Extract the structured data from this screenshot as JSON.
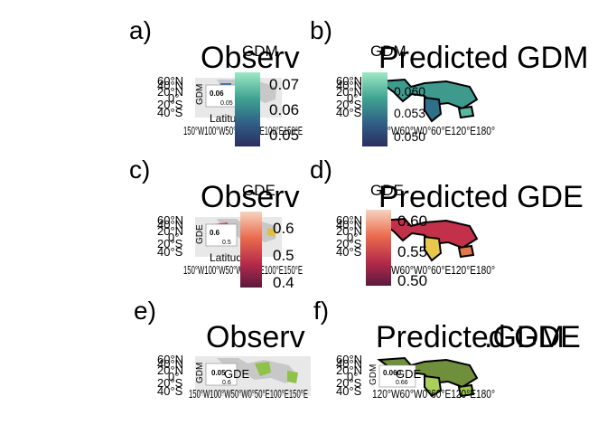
{
  "figure": {
    "panels": [
      {
        "id": "a",
        "letter": "a)",
        "title": "Observ",
        "legend_title": "GDM",
        "ticks": [
          "0.07",
          "0.06",
          "0.05"
        ],
        "inset_labels": [
          "0.06",
          "0.05"
        ],
        "inset_xlabel": "Latitude",
        "inset_ylabel": "GDM",
        "lat_labels": [
          "60°N",
          "40°N",
          "20°N",
          "0°",
          "20°S",
          "40°S"
        ],
        "lon_labels": "150°W100°W50°W0°50°E100°E150°E"
      },
      {
        "id": "b",
        "letter": "b)",
        "title": "Predicted GDM",
        "legend_title": "GDM",
        "ticks": [
          "0.060",
          "0.053",
          "0.050"
        ],
        "inset_labels": [],
        "inset_xlabel": "",
        "inset_ylabel": "",
        "lat_labels": [
          "60°N",
          "40°N",
          "20°N",
          "0°",
          "20°S",
          "40°S"
        ],
        "lon_labels": "120°W60°W0°60°E120°E180°"
      },
      {
        "id": "c",
        "letter": "c)",
        "title": "Observ",
        "legend_title": "GDE",
        "ticks": [
          "0.6",
          "0.5",
          "0.4"
        ],
        "inset_labels": [
          "0.6",
          "0.5"
        ],
        "inset_xlabel": "Latitude",
        "inset_ylabel": "GDE",
        "lat_labels": [
          "60°N",
          "40°N",
          "20°N",
          "0°",
          "20°S",
          "40°S"
        ],
        "lon_labels": "150°W100°W50°W0°50°E100°E150°E"
      },
      {
        "id": "d",
        "letter": "d)",
        "title": "Predicted GDE",
        "legend_title": "GDE",
        "ticks": [
          "0.60",
          "0.55",
          "0.50"
        ],
        "inset_labels": [],
        "inset_xlabel": "",
        "inset_ylabel": "",
        "lat_labels": [
          "60°N",
          "40°N",
          "20°N",
          "0°",
          "20°S",
          "40°S"
        ],
        "lon_labels": "120°W60°W0°60°E120°E180°"
      },
      {
        "id": "e",
        "letter": "e)",
        "title": "Observ",
        "legend_title": "",
        "ticks": [],
        "inset_labels": [
          "0.05",
          "0.6"
        ],
        "inset_xlabel": "GDE",
        "inset_ylabel": "GDM",
        "lat_labels": [
          "60°N",
          "40°N",
          "20°N",
          "0°",
          "20°S",
          "40°S"
        ],
        "lon_labels": "150°W100°W50°W0°50°E100°E150°E"
      },
      {
        "id": "f",
        "letter": "f)",
        "title": "Predicted GDE",
        "title_overlap": ".GDM",
        "legend_title": "",
        "ticks": [],
        "inset_labels": [
          "0.060",
          "0.66"
        ],
        "inset_xlabel": "GDE",
        "inset_ylabel": "GDM",
        "lat_labels": [
          "60°N",
          "40°N",
          "20°N",
          "0°",
          "20°S",
          "40°S"
        ],
        "lon_labels": "120°W60°W0°60°E120°E180°"
      }
    ]
  },
  "colors": {
    "gdm_high": "#7fd6b0",
    "gdm_low": "#2b2f5e",
    "gde_high": "#f6c7b0",
    "gde_low": "#5a1a3e",
    "land": "#c8c8c8",
    "veg": "#8fc24a"
  },
  "chart_data": [
    {
      "type": "heatmap",
      "title": "Observ",
      "legend": "GDM",
      "scale": [
        "0.07",
        "0.06",
        "0.05"
      ]
    },
    {
      "type": "heatmap",
      "title": "Predicted GDM",
      "legend": "GDM",
      "scale": [
        "0.060",
        "0.053",
        "0.050"
      ]
    },
    {
      "type": "heatmap",
      "title": "Observ",
      "legend": "GDE",
      "scale": [
        "0.6",
        "0.5",
        "0.4"
      ]
    },
    {
      "type": "heatmap",
      "title": "Predicted GDE",
      "legend": "GDE",
      "scale": [
        "0.60",
        "0.55",
        "0.50"
      ]
    },
    {
      "type": "heatmap",
      "title": "Observ",
      "legend": ""
    },
    {
      "type": "heatmap",
      "title": "Predicted GDE"
    }
  ]
}
